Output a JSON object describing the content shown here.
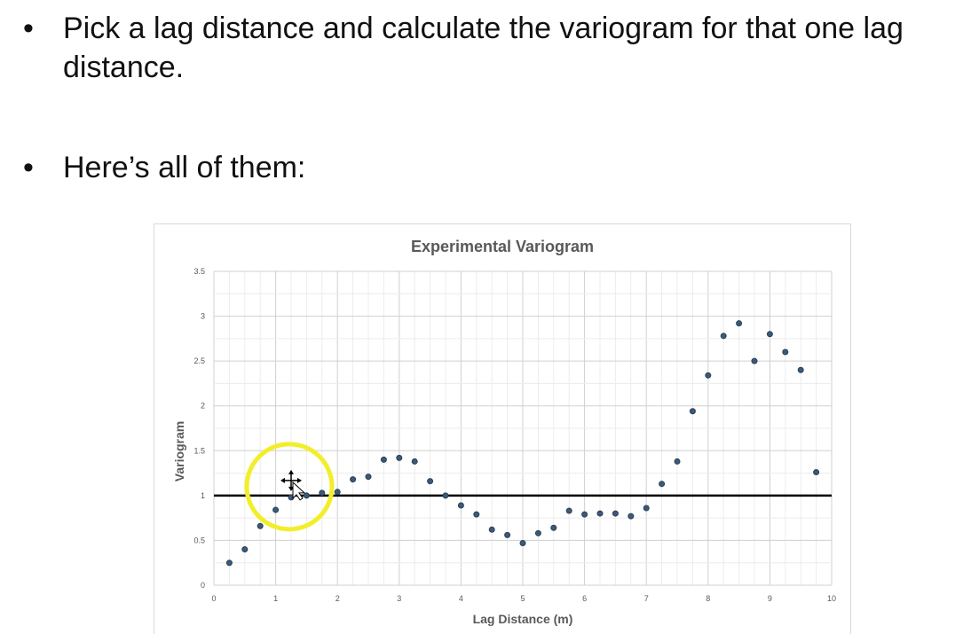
{
  "bullets": [
    {
      "symbol": "•",
      "text": "Pick a lag distance and calculate the variogram for that one lag distance."
    },
    {
      "symbol": "•",
      "text": "Here’s all of them:"
    }
  ],
  "chart_data": {
    "type": "scatter",
    "title": "Experimental Variogram",
    "xlabel": "Lag Distance (m)",
    "ylabel": "Variogram",
    "xlim": [
      0,
      10
    ],
    "ylim": [
      0,
      3.5
    ],
    "xticks": [
      "0",
      "1",
      "2",
      "3",
      "4",
      "5",
      "6",
      "7",
      "8",
      "9",
      "10"
    ],
    "yticks": [
      "0",
      "0.5",
      "1",
      "1.5",
      "2",
      "2.5",
      "3",
      "3.5"
    ],
    "grid": true,
    "reference_line": {
      "y": 1
    },
    "highlight_circle_center": {
      "x": 1.25,
      "y": 1.0
    },
    "marker_color": "#3c5a78",
    "highlight_color": "#f2ee2a",
    "series": [
      {
        "x": [
          0.25,
          0.5,
          0.75,
          1.0,
          1.25,
          1.5,
          1.75,
          2.0,
          2.25,
          2.5,
          2.75,
          3.0,
          3.25,
          3.5,
          3.75,
          4.0,
          4.25,
          4.5,
          4.75,
          5.0,
          5.25,
          5.5,
          5.75,
          6.0,
          6.25,
          6.5,
          6.75,
          7.0,
          7.25,
          7.5,
          7.75,
          8.0,
          8.25,
          8.5,
          8.75,
          9.0,
          9.25,
          9.5,
          9.75
        ],
        "y": [
          0.25,
          0.4,
          0.66,
          0.84,
          0.98,
          1.0,
          1.03,
          1.04,
          1.18,
          1.21,
          1.4,
          1.42,
          1.38,
          1.16,
          1.0,
          0.89,
          0.79,
          0.62,
          0.56,
          0.47,
          0.58,
          0.64,
          0.83,
          0.79,
          0.8,
          0.8,
          0.77,
          0.86,
          1.13,
          1.38,
          1.94,
          2.34,
          2.78,
          2.92,
          2.5,
          2.8,
          2.6,
          2.4,
          1.26
        ]
      }
    ]
  }
}
